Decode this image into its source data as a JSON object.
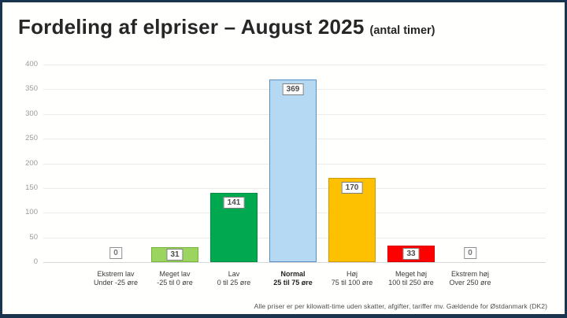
{
  "header": {
    "title": "Fordeling af elpriser – August 2025",
    "subtitle": "(antal timer)"
  },
  "footnote": "Alle priser er per kilowatt-time uden skatter, afgifter, tariffer mv. Gældende for Østdanmark (DK2)",
  "colors": {
    "frame": "#18344e",
    "background": "#fffffe",
    "grid": "#ebebeb",
    "baseline": "#d7d7d7",
    "tick_text": "#9b9b9b",
    "category_text": "#3a3a3a"
  },
  "chart_data": {
    "type": "bar",
    "title": "Fordeling af elpriser – August 2025 (antal timer)",
    "categories": [
      "Ekstrem lav",
      "Meget lav",
      "Lav",
      "Normal",
      "Høj",
      "Meget høj",
      "Ekstrem høj"
    ],
    "category_sublabels": [
      "Under -25 øre",
      "-25 til 0 øre",
      "0 til 25 øre",
      "25 til 75 øre",
      "75 til 100 øre",
      "100 til 250 øre",
      "Over 250 øre"
    ],
    "values": [
      0,
      31,
      141,
      369,
      170,
      33,
      0
    ],
    "bar_fill_colors": [
      "none",
      "#9bd45e",
      "#00a84f",
      "#b5d9f3",
      "#fdc101",
      "#fe0000",
      "none"
    ],
    "bar_border_colors": [
      "none",
      "#78b33e",
      "#008c41",
      "#5a8fc4",
      "#cf9a06",
      "#d40000",
      "none"
    ],
    "emphasized_category_index": 3,
    "xlabel": "",
    "ylabel": "",
    "ylim": [
      0,
      400
    ],
    "yticks": [
      0,
      50,
      100,
      150,
      200,
      250,
      300,
      350,
      400
    ],
    "grid": true,
    "legend": "none"
  }
}
